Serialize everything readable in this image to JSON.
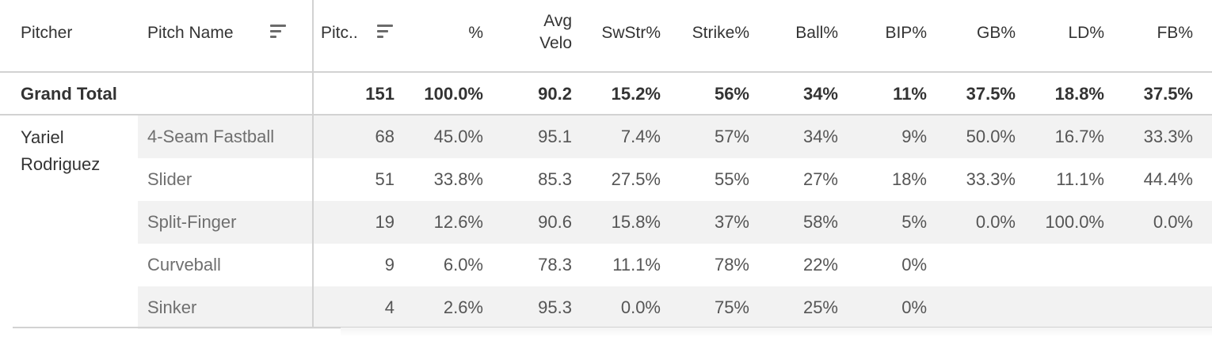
{
  "headers": {
    "pitcher": "Pitcher",
    "pitch_name": "Pitch Name",
    "pitches": "Pitc..",
    "pct": "%",
    "avg_velo_1": "Avg",
    "avg_velo_2": "Velo",
    "swstr": "SwStr%",
    "strike": "Strike%",
    "ball": "Ball%",
    "bip": "BIP%",
    "gb": "GB%",
    "ld": "LD%",
    "fb": "FB%"
  },
  "grand_total": {
    "label": "Grand Total",
    "pitches": "151",
    "pct": "100.0%",
    "velo": "90.2",
    "swstr": "15.2%",
    "strike": "56%",
    "ball": "34%",
    "bip": "11%",
    "gb": "37.5%",
    "ld": "18.8%",
    "fb": "37.5%"
  },
  "pitcher": {
    "line1": "Yariel",
    "line2": "Rodriguez"
  },
  "rows": [
    {
      "name": "4-Seam Fastball",
      "pitches": "68",
      "pct": "45.0%",
      "velo": "95.1",
      "swstr": "7.4%",
      "strike": "57%",
      "ball": "34%",
      "bip": "9%",
      "gb": "50.0%",
      "ld": "16.7%",
      "fb": "33.3%"
    },
    {
      "name": "Slider",
      "pitches": "51",
      "pct": "33.8%",
      "velo": "85.3",
      "swstr": "27.5%",
      "strike": "55%",
      "ball": "27%",
      "bip": "18%",
      "gb": "33.3%",
      "ld": "11.1%",
      "fb": "44.4%"
    },
    {
      "name": "Split-Finger",
      "pitches": "19",
      "pct": "12.6%",
      "velo": "90.6",
      "swstr": "15.8%",
      "strike": "37%",
      "ball": "58%",
      "bip": "5%",
      "gb": "0.0%",
      "ld": "100.0%",
      "fb": "0.0%"
    },
    {
      "name": "Curveball",
      "pitches": "9",
      "pct": "6.0%",
      "velo": "78.3",
      "swstr": "11.1%",
      "strike": "78%",
      "ball": "22%",
      "bip": "0%",
      "gb": "",
      "ld": "",
      "fb": ""
    },
    {
      "name": "Sinker",
      "pitches": "4",
      "pct": "2.6%",
      "velo": "95.3",
      "swstr": "0.0%",
      "strike": "75%",
      "ball": "25%",
      "bip": "0%",
      "gb": "",
      "ld": "",
      "fb": ""
    }
  ],
  "colors": {
    "stripe": "#f2f2f2",
    "divider": "#d2d2d2",
    "text": "#333333"
  }
}
